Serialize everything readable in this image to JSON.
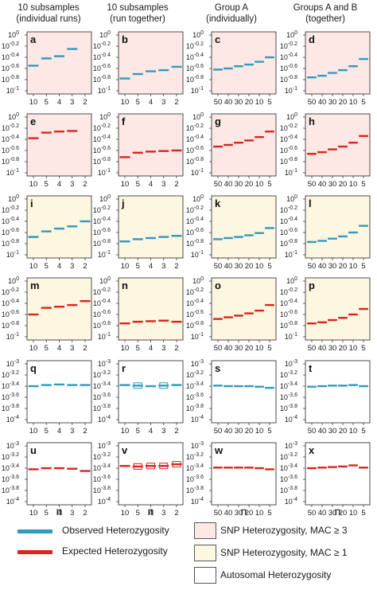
{
  "column_headers": [
    {
      "line1": "10 subsamples",
      "line2": "(individual runs)"
    },
    {
      "line1": "10 subsamples",
      "line2": "(run together)"
    },
    {
      "line1": "Group A",
      "line2": "(individually)"
    },
    {
      "line1": "Groups A and B",
      "line2": "(together)"
    }
  ],
  "x_axis_title": "n",
  "colors": {
    "observed": "#2f9bbd",
    "expected": "#d9251c",
    "bg_mac3": "#fde8e6",
    "bg_mac1": "#fdf6e1",
    "bg_auto": "#ffffff"
  },
  "legend": {
    "observed": "Observed Heterozygosity",
    "expected": "Expected Heterozygosity",
    "mac3": "SNP Heterozygosity, MAC ≥ 3",
    "mac1": "SNP Heterozygosity, MAC ≥ 1",
    "auto": "Autosomal Heterozygosity"
  },
  "chart_data": [
    {
      "type": "scatter",
      "panel": "a",
      "row": 0,
      "col": 0,
      "background": "mac3",
      "series": "observed",
      "y_scale": "log10",
      "ylim": [
        -1,
        0
      ],
      "y_ticks": [
        "10^0",
        "10^-0.2",
        "10^-0.4",
        "10^-0.6",
        "10^-0.8",
        "10^-1"
      ],
      "x": [
        "10",
        "5",
        "4",
        "3",
        "2"
      ],
      "y": [
        -0.55,
        -0.42,
        -0.38,
        -0.25,
        null
      ]
    },
    {
      "type": "scatter",
      "panel": "b",
      "row": 0,
      "col": 1,
      "background": "mac3",
      "series": "observed",
      "y_scale": "log10",
      "ylim": [
        -1,
        0
      ],
      "y_ticks": [
        "10^0",
        "10^-0.2",
        "10^-0.4",
        "10^-0.6",
        "10^-0.8",
        "10^-1"
      ],
      "x": [
        "10",
        "5",
        "4",
        "3",
        "2"
      ],
      "y": [
        -0.78,
        -0.7,
        -0.65,
        -0.63,
        -0.57
      ]
    },
    {
      "type": "scatter",
      "panel": "c",
      "row": 0,
      "col": 2,
      "background": "mac3",
      "series": "observed",
      "y_scale": "log10",
      "ylim": [
        -1,
        0
      ],
      "y_ticks": [
        "10^0",
        "10^-0.2",
        "10^-0.4",
        "10^-0.6",
        "10^-0.8",
        "10^-1"
      ],
      "x": [
        "50",
        "40",
        "30",
        "20",
        "10",
        "5"
      ],
      "y": [
        -0.62,
        -0.6,
        -0.56,
        -0.53,
        -0.48,
        -0.4
      ]
    },
    {
      "type": "scatter",
      "panel": "d",
      "row": 0,
      "col": 3,
      "background": "mac3",
      "series": "observed",
      "y_scale": "log10",
      "ylim": [
        -1,
        0
      ],
      "y_ticks": [
        "10^0",
        "10^-0.2",
        "10^-0.4",
        "10^-0.6",
        "10^-0.8",
        "10^-1"
      ],
      "x": [
        "50",
        "40",
        "30",
        "20",
        "10",
        "5"
      ],
      "y": [
        -0.76,
        -0.73,
        -0.68,
        -0.63,
        -0.56,
        -0.43
      ]
    },
    {
      "type": "scatter",
      "panel": "e",
      "row": 1,
      "col": 0,
      "background": "mac3",
      "series": "expected",
      "y_scale": "log10",
      "ylim": [
        -1,
        0
      ],
      "y_ticks": [
        "10^0",
        "10^-0.2",
        "10^-0.4",
        "10^-0.6",
        "10^-0.8",
        "10^-1"
      ],
      "x": [
        "10",
        "5",
        "4",
        "3",
        "2"
      ],
      "y": [
        -0.38,
        -0.28,
        -0.26,
        -0.25,
        null
      ]
    },
    {
      "type": "scatter",
      "panel": "f",
      "row": 1,
      "col": 1,
      "background": "mac3",
      "series": "expected",
      "y_scale": "log10",
      "ylim": [
        -1,
        0
      ],
      "y_ticks": [
        "10^0",
        "10^-0.2",
        "10^-0.4",
        "10^-0.6",
        "10^-0.8",
        "10^-1"
      ],
      "x": [
        "10",
        "5",
        "4",
        "3",
        "2"
      ],
      "y": [
        -0.72,
        -0.64,
        -0.62,
        -0.61,
        -0.6
      ]
    },
    {
      "type": "scatter",
      "panel": "g",
      "row": 1,
      "col": 2,
      "background": "mac3",
      "series": "expected",
      "y_scale": "log10",
      "ylim": [
        -1,
        0
      ],
      "y_ticks": [
        "10^0",
        "10^-0.2",
        "10^-0.4",
        "10^-0.6",
        "10^-0.8",
        "10^-1"
      ],
      "x": [
        "50",
        "40",
        "30",
        "20",
        "10",
        "5"
      ],
      "y": [
        -0.53,
        -0.5,
        -0.46,
        -0.42,
        -0.36,
        -0.26
      ]
    },
    {
      "type": "scatter",
      "panel": "h",
      "row": 1,
      "col": 3,
      "background": "mac3",
      "series": "expected",
      "y_scale": "log10",
      "ylim": [
        -1,
        0
      ],
      "y_ticks": [
        "10^0",
        "10^-0.2",
        "10^-0.4",
        "10^-0.6",
        "10^-0.8",
        "10^-1"
      ],
      "x": [
        "50",
        "40",
        "30",
        "20",
        "10",
        "5"
      ],
      "y": [
        -0.66,
        -0.63,
        -0.58,
        -0.53,
        -0.46,
        -0.34
      ]
    },
    {
      "type": "scatter",
      "panel": "i",
      "row": 2,
      "col": 0,
      "background": "mac1",
      "series": "observed",
      "y_scale": "log10",
      "ylim": [
        -1,
        0
      ],
      "y_ticks": [
        "10^0",
        "10^-0.2",
        "10^-0.4",
        "10^-0.6",
        "10^-0.8",
        "10^-1"
      ],
      "x": [
        "10",
        "5",
        "4",
        "3",
        "2"
      ],
      "y": [
        -0.68,
        -0.58,
        -0.53,
        -0.49,
        -0.4
      ]
    },
    {
      "type": "scatter",
      "panel": "j",
      "row": 2,
      "col": 1,
      "background": "mac1",
      "series": "observed",
      "y_scale": "log10",
      "ylim": [
        -1,
        0
      ],
      "y_ticks": [
        "10^0",
        "10^-0.2",
        "10^-0.4",
        "10^-0.6",
        "10^-0.8",
        "10^-1"
      ],
      "x": [
        "10",
        "5",
        "4",
        "3",
        "2"
      ],
      "y": [
        -0.76,
        -0.72,
        -0.7,
        -0.68,
        -0.66
      ]
    },
    {
      "type": "scatter",
      "panel": "k",
      "row": 2,
      "col": 2,
      "background": "mac1",
      "series": "observed",
      "y_scale": "log10",
      "ylim": [
        -1,
        0
      ],
      "y_ticks": [
        "10^0",
        "10^-0.2",
        "10^-0.4",
        "10^-0.6",
        "10^-0.8",
        "10^-1"
      ],
      "x": [
        "50",
        "40",
        "30",
        "20",
        "10",
        "5"
      ],
      "y": [
        -0.72,
        -0.7,
        -0.68,
        -0.65,
        -0.61,
        -0.52
      ]
    },
    {
      "type": "scatter",
      "panel": "l",
      "row": 2,
      "col": 3,
      "background": "mac1",
      "series": "observed",
      "y_scale": "log10",
      "ylim": [
        -1,
        0
      ],
      "y_ticks": [
        "10^0",
        "10^-0.2",
        "10^-0.4",
        "10^-0.6",
        "10^-0.8",
        "10^-1"
      ],
      "x": [
        "50",
        "40",
        "30",
        "20",
        "10",
        "5"
      ],
      "y": [
        -0.77,
        -0.75,
        -0.71,
        -0.67,
        -0.6,
        -0.48
      ]
    },
    {
      "type": "scatter",
      "panel": "m",
      "row": 3,
      "col": 0,
      "background": "mac1",
      "series": "expected",
      "y_scale": "log10",
      "ylim": [
        -1,
        0
      ],
      "y_ticks": [
        "10^0",
        "10^-0.2",
        "10^-0.4",
        "10^-0.6",
        "10^-0.8",
        "10^-1"
      ],
      "x": [
        "10",
        "5",
        "4",
        "3",
        "2"
      ],
      "y": [
        -0.6,
        -0.48,
        -0.46,
        -0.43,
        -0.36
      ]
    },
    {
      "type": "scatter",
      "panel": "n",
      "row": 3,
      "col": 1,
      "background": "mac1",
      "series": "expected",
      "y_scale": "log10",
      "ylim": [
        -1,
        0
      ],
      "y_ticks": [
        "10^0",
        "10^-0.2",
        "10^-0.4",
        "10^-0.6",
        "10^-0.8",
        "10^-1"
      ],
      "x": [
        "10",
        "5",
        "4",
        "3",
        "2"
      ],
      "y": [
        -0.76,
        -0.73,
        -0.72,
        -0.71,
        -0.73
      ]
    },
    {
      "type": "scatter",
      "panel": "o",
      "row": 3,
      "col": 2,
      "background": "mac1",
      "series": "expected",
      "y_scale": "log10",
      "ylim": [
        -1,
        0
      ],
      "y_ticks": [
        "10^0",
        "10^-0.2",
        "10^-0.4",
        "10^-0.6",
        "10^-0.8",
        "10^-1"
      ],
      "x": [
        "50",
        "40",
        "30",
        "20",
        "10",
        "5"
      ],
      "y": [
        -0.68,
        -0.65,
        -0.62,
        -0.58,
        -0.53,
        -0.43
      ]
    },
    {
      "type": "scatter",
      "panel": "p",
      "row": 3,
      "col": 3,
      "background": "mac1",
      "series": "expected",
      "y_scale": "log10",
      "ylim": [
        -1,
        0
      ],
      "y_ticks": [
        "10^0",
        "10^-0.2",
        "10^-0.4",
        "10^-0.6",
        "10^-0.8",
        "10^-1"
      ],
      "x": [
        "50",
        "40",
        "30",
        "20",
        "10",
        "5"
      ],
      "y": [
        -0.76,
        -0.74,
        -0.7,
        -0.66,
        -0.6,
        -0.5
      ]
    },
    {
      "type": "scatter",
      "panel": "q",
      "row": 4,
      "col": 0,
      "background": "auto",
      "series": "observed",
      "y_scale": "log10",
      "ylim": [
        -4,
        -3
      ],
      "y_ticks": [
        "10^-3",
        "10^-3.2",
        "10^-3.4",
        "10^-3.6",
        "10^-3.8",
        "10^-4"
      ],
      "x": [
        "10",
        "5",
        "4",
        "3",
        "2"
      ],
      "y": [
        -3.4,
        -3.38,
        -3.37,
        -3.38,
        -3.38
      ],
      "boxes": false
    },
    {
      "type": "scatter",
      "panel": "r",
      "row": 4,
      "col": 1,
      "background": "auto",
      "series": "observed",
      "y_scale": "log10",
      "ylim": [
        -4,
        -3
      ],
      "y_ticks": [
        "10^-3",
        "10^-3.2",
        "10^-3.4",
        "10^-3.6",
        "10^-3.8",
        "10^-4"
      ],
      "x": [
        "10",
        "5",
        "4",
        "3",
        "2"
      ],
      "y": [
        -3.38,
        -3.39,
        -3.4,
        -3.39,
        -3.38
      ],
      "boxes": [
        false,
        true,
        false,
        true,
        false
      ]
    },
    {
      "type": "scatter",
      "panel": "s",
      "row": 4,
      "col": 2,
      "background": "auto",
      "series": "observed",
      "y_scale": "log10",
      "ylim": [
        -4,
        -3
      ],
      "y_ticks": [
        "10^-3",
        "10^-3.2",
        "10^-3.4",
        "10^-3.6",
        "10^-3.8",
        "10^-4"
      ],
      "x": [
        "50",
        "40",
        "30",
        "20",
        "10",
        "5"
      ],
      "y": [
        -3.39,
        -3.4,
        -3.4,
        -3.4,
        -3.41,
        -3.43
      ]
    },
    {
      "type": "scatter",
      "panel": "t",
      "row": 4,
      "col": 3,
      "background": "auto",
      "series": "observed",
      "y_scale": "log10",
      "ylim": [
        -4,
        -3
      ],
      "y_ticks": [
        "10^-3",
        "10^-3.2",
        "10^-3.4",
        "10^-3.6",
        "10^-3.8",
        "10^-4"
      ],
      "x": [
        "50",
        "40",
        "30",
        "20",
        "10",
        "5"
      ],
      "y": [
        -3.41,
        -3.4,
        -3.39,
        -3.39,
        -3.38,
        -3.4
      ]
    },
    {
      "type": "scatter",
      "panel": "u",
      "row": 5,
      "col": 0,
      "background": "auto",
      "series": "expected",
      "y_scale": "log10",
      "ylim": [
        -4,
        -3
      ],
      "y_ticks": [
        "10^-3",
        "10^-3.2",
        "10^-3.4",
        "10^-3.6",
        "10^-3.8",
        "10^-4"
      ],
      "x": [
        "10",
        "5",
        "4",
        "3",
        "2"
      ],
      "y": [
        -3.42,
        -3.4,
        -3.4,
        -3.41,
        -3.45
      ]
    },
    {
      "type": "scatter",
      "panel": "v",
      "row": 5,
      "col": 1,
      "background": "auto",
      "series": "expected",
      "y_scale": "log10",
      "ylim": [
        -4,
        -3
      ],
      "y_ticks": [
        "10^-3",
        "10^-3.2",
        "10^-3.4",
        "10^-3.6",
        "10^-3.8",
        "10^-4"
      ],
      "x": [
        "10",
        "5",
        "4",
        "3",
        "2"
      ],
      "y": [
        -3.36,
        -3.37,
        -3.36,
        -3.36,
        -3.33
      ],
      "boxes": [
        false,
        true,
        true,
        true,
        true
      ]
    },
    {
      "type": "scatter",
      "panel": "w",
      "row": 5,
      "col": 2,
      "background": "auto",
      "series": "expected",
      "y_scale": "log10",
      "ylim": [
        -4,
        -3
      ],
      "y_ticks": [
        "10^-3",
        "10^-3.2",
        "10^-3.4",
        "10^-3.6",
        "10^-3.8",
        "10^-4"
      ],
      "x": [
        "50",
        "40",
        "30",
        "20",
        "10",
        "5"
      ],
      "y": [
        -3.39,
        -3.39,
        -3.39,
        -3.39,
        -3.4,
        -3.42
      ]
    },
    {
      "type": "scatter",
      "panel": "x",
      "row": 5,
      "col": 3,
      "background": "auto",
      "series": "expected",
      "y_scale": "log10",
      "ylim": [
        -4,
        -3
      ],
      "y_ticks": [
        "10^-3",
        "10^-3.2",
        "10^-3.4",
        "10^-3.6",
        "10^-3.8",
        "10^-4"
      ],
      "x": [
        "50",
        "40",
        "30",
        "20",
        "10",
        "5"
      ],
      "y": [
        -3.4,
        -3.39,
        -3.38,
        -3.37,
        -3.35,
        -3.39
      ]
    }
  ]
}
